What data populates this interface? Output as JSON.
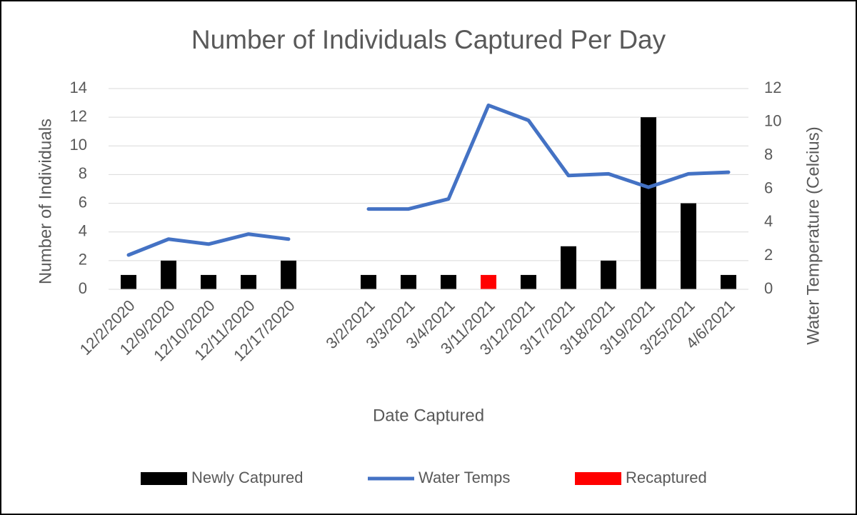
{
  "chart_data": {
    "type": "bar",
    "title": "Number of Individuals Captured Per Day",
    "x_label": "Date Captured",
    "y_label": "Number of Individuals",
    "y2_label": "Water Temperature (Celcius)",
    "categories": [
      "12/2/2020",
      "12/9/2020",
      "12/10/2020",
      "12/11/2020",
      "12/17/2020",
      null,
      "3/2/2021",
      "3/3/2021",
      "3/4/2021",
      "3/11/2021",
      "3/12/2021",
      "3/17/2021",
      "3/18/2021",
      "3/19/2021",
      "3/25/2021",
      "4/6/2021"
    ],
    "series": [
      {
        "name": "Newly Catpured",
        "type": "bar",
        "color": "#000000",
        "values": [
          1,
          2,
          1,
          1,
          2,
          null,
          1,
          1,
          1,
          null,
          1,
          3,
          2,
          12,
          6,
          1
        ]
      },
      {
        "name": "Water Temps",
        "type": "line",
        "axis": "y2",
        "color": "#4472c4",
        "values": [
          2.05,
          3.0,
          2.7,
          3.3,
          3.0,
          null,
          4.8,
          4.8,
          5.4,
          11.0,
          10.1,
          6.8,
          6.9,
          6.1,
          6.9,
          7.0
        ]
      },
      {
        "name": "Recaptured",
        "type": "bar",
        "color": "#ff0000",
        "values": [
          null,
          null,
          null,
          null,
          null,
          null,
          null,
          null,
          null,
          1,
          null,
          null,
          null,
          null,
          null,
          null
        ]
      }
    ],
    "ylim": [
      0,
      14
    ],
    "yticks": [
      0,
      2,
      4,
      6,
      8,
      10,
      12,
      14
    ],
    "y2lim": [
      0,
      12
    ],
    "y2ticks": [
      0,
      2,
      4,
      6,
      8,
      10,
      12
    ],
    "grid": true,
    "legend": "bottom"
  }
}
